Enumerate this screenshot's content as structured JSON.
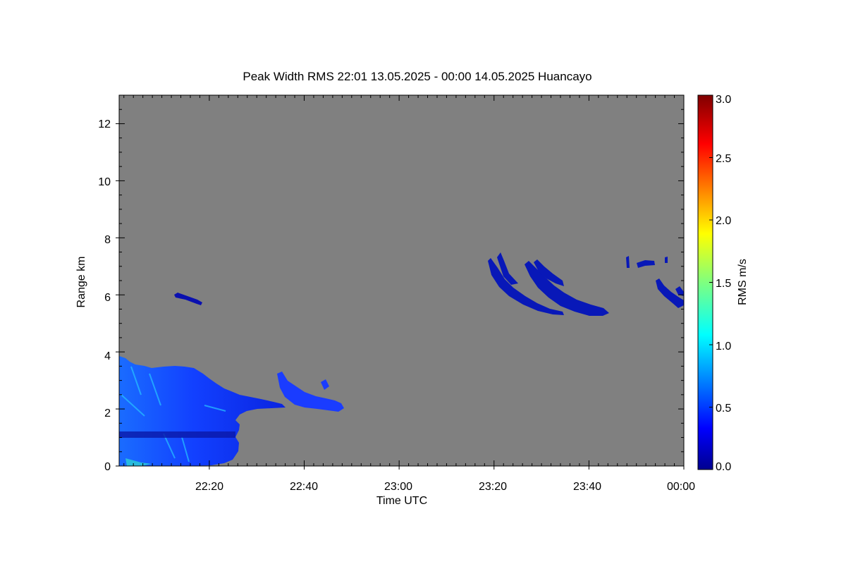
{
  "chart_data": {
    "type": "heatmap",
    "title": "Peak Width RMS   22:01 13.05.2025 - 00:00 14.05.2025 Huancayo",
    "xlabel": "Time UTC",
    "ylabel": "Range km",
    "xlim": [
      "22:01",
      "00:00"
    ],
    "ylim": [
      0,
      13
    ],
    "x_ticks": [
      "22:20",
      "22:40",
      "23:00",
      "23:20",
      "23:40",
      "00:00"
    ],
    "y_ticks": [
      "0",
      "2",
      "4",
      "6",
      "8",
      "10",
      "12"
    ],
    "colorbar": {
      "label": "RMS m/s",
      "range": [
        0.0,
        3.0
      ],
      "ticks": [
        "0.0",
        "0.5",
        "1.0",
        "1.5",
        "2.0",
        "2.5",
        "3.0"
      ],
      "colormap": "jet"
    },
    "colors": {
      "background": "#808080",
      "low": "#0010b0",
      "mid": "#1a50ff"
    },
    "features": [
      {
        "name": "low-level echo",
        "time_range": [
          "22:01",
          "22:27"
        ],
        "range_km": [
          0.1,
          3.9
        ],
        "rms_m_s": [
          0.1,
          1.5
        ]
      },
      {
        "name": "low-level echo tail",
        "time_range": [
          "22:27",
          "22:49"
        ],
        "range_km": [
          1.8,
          3.4
        ],
        "rms_m_s": [
          0.2,
          0.5
        ]
      },
      {
        "name": "thin layer",
        "time_range": [
          "22:13",
          "22:18"
        ],
        "range_km": [
          5.7,
          6.1
        ],
        "rms_m_s": [
          0.1,
          0.2
        ]
      },
      {
        "name": "descending layer A",
        "time_range": [
          "23:19",
          "23:35"
        ],
        "range_km": [
          5.4,
          7.5
        ],
        "rms_m_s": [
          0.0,
          0.2
        ]
      },
      {
        "name": "descending layer B",
        "time_range": [
          "23:27",
          "23:45"
        ],
        "range_km": [
          5.3,
          7.2
        ],
        "rms_m_s": [
          0.0,
          0.2
        ]
      },
      {
        "name": "upper fragments",
        "time_range": [
          "23:49",
          "23:56"
        ],
        "range_km": [
          7.0,
          7.4
        ],
        "rms_m_s": [
          0.0,
          0.2
        ]
      },
      {
        "name": "descending layer C",
        "time_range": [
          "23:54",
          "00:00"
        ],
        "range_km": [
          5.5,
          6.6
        ],
        "rms_m_s": [
          0.0,
          0.2
        ]
      }
    ]
  }
}
